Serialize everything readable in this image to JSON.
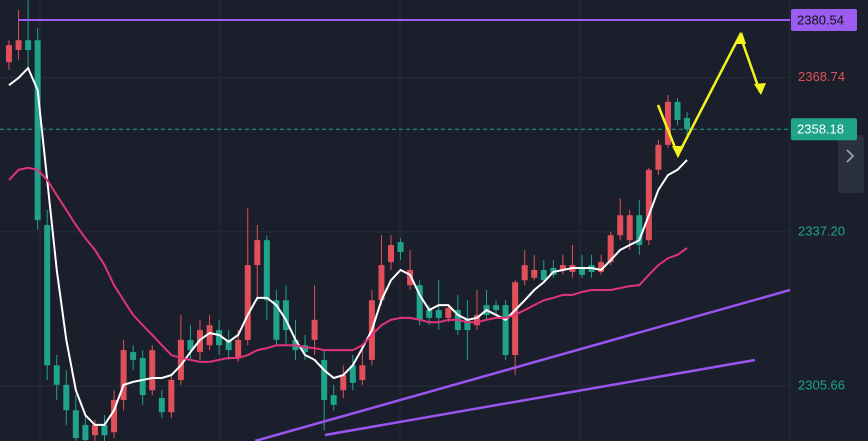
{
  "chart_data": {
    "type": "candlestick",
    "up_color": "#e0505a",
    "down_color": "#1fa38a",
    "ylim": [
      2294.41,
      2384.63
    ],
    "yticks": [
      2368.74,
      {
        "value": 2337.2,
        "label": "2337.20"
      },
      2305.66
    ],
    "ytick_colors": [
      "#e0505a",
      "#1fa38a",
      "#1fa38a"
    ],
    "grid": true,
    "open": [
      2371.9,
      2374.4,
      2376.4,
      2376.4,
      2338.6,
      2309.9,
      2305.9,
      2300.7,
      2297.7,
      2295.6,
      2297.7,
      2296.2,
      2302.8,
      2312.6,
      2311.4,
      2304.8,
      2303.2,
      2300.3,
      2306.9,
      2315.1,
      2312.6,
      2314.0,
      2317.1,
      2315.1,
      2311.4,
      2315.1,
      2330.4,
      2335.5,
      2323.2,
      2323.2,
      2315.1,
      2314.0,
      2315.1,
      2311.0,
      2303.8,
      2304.8,
      2309.9,
      2306.9,
      2311.0,
      2323.2,
      2331.0,
      2335.1,
      2326.3,
      2326.3,
      2321.2,
      2321.2,
      2319.6,
      2321.2,
      2319.2,
      2318.1,
      2322.2,
      2322.2,
      2322.2,
      2312.0,
      2327.3,
      2327.8,
      2329.4,
      2329.8,
      2329.4,
      2329.0,
      2329.8,
      2330.4,
      2329.0,
      2331.0,
      2336.5,
      2335.5,
      2340.6,
      2335.5,
      2349.9,
      2355.0,
      2363.8,
      2360.5
    ],
    "high": [
      2376.4,
      2382.6,
      2384.6,
      2378.9,
      2341.7,
      2312.0,
      2308.9,
      2303.8,
      2299.7,
      2298.7,
      2299.7,
      2304.8,
      2315.1,
      2314.0,
      2313.0,
      2314.0,
      2304.8,
      2307.9,
      2320.2,
      2318.1,
      2319.2,
      2320.2,
      2319.2,
      2317.1,
      2317.1,
      2342.0,
      2338.6,
      2336.5,
      2325.3,
      2326.3,
      2319.2,
      2316.1,
      2326.3,
      2313.0,
      2305.9,
      2309.9,
      2312.0,
      2313.0,
      2325.3,
      2336.5,
      2336.5,
      2335.9,
      2333.5,
      2327.3,
      2322.2,
      2327.3,
      2322.2,
      2324.3,
      2323.2,
      2325.3,
      2325.3,
      2323.2,
      2323.2,
      2327.3,
      2333.5,
      2332.5,
      2331.4,
      2331.4,
      2332.5,
      2334.5,
      2332.5,
      2332.5,
      2332.5,
      2337.2,
      2344.1,
      2341.7,
      2343.7,
      2350.3,
      2356.0,
      2365.2,
      2364.6,
      2361.7
    ],
    "low": [
      2370.3,
      2372.4,
      2370.3,
      2337.6,
      2306.9,
      2302.8,
      2297.7,
      2294.4,
      2294.4,
      2294.4,
      2294.4,
      2295.0,
      2300.7,
      2308.9,
      2301.8,
      2303.8,
      2299.1,
      2299.1,
      2305.9,
      2311.0,
      2311.0,
      2313.0,
      2312.0,
      2311.0,
      2310.6,
      2314.0,
      2323.2,
      2319.2,
      2314.0,
      2314.0,
      2311.0,
      2311.0,
      2312.0,
      2296.6,
      2300.7,
      2303.2,
      2304.8,
      2305.9,
      2309.9,
      2322.2,
      2329.4,
      2331.4,
      2325.3,
      2318.1,
      2318.1,
      2317.1,
      2318.7,
      2316.1,
      2311.0,
      2317.1,
      2319.2,
      2320.2,
      2311.0,
      2307.9,
      2326.3,
      2327.3,
      2326.9,
      2327.8,
      2328.4,
      2327.8,
      2327.8,
      2327.8,
      2328.4,
      2330.4,
      2335.5,
      2333.5,
      2332.5,
      2334.5,
      2348.8,
      2354.4,
      2359.0,
      2357.0
    ],
    "close": [
      2375.4,
      2376.4,
      2374.4,
      2339.6,
      2309.9,
      2305.9,
      2300.7,
      2295.0,
      2294.6,
      2297.7,
      2295.6,
      2302.8,
      2313.0,
      2311.0,
      2303.8,
      2313.0,
      2300.3,
      2306.9,
      2315.1,
      2313.0,
      2317.1,
      2318.1,
      2314.0,
      2313.0,
      2315.1,
      2330.4,
      2335.5,
      2323.2,
      2315.1,
      2317.1,
      2313.0,
      2312.6,
      2319.2,
      2302.8,
      2301.8,
      2307.9,
      2306.3,
      2309.9,
      2323.2,
      2330.4,
      2334.5,
      2333.1,
      2329.4,
      2319.2,
      2319.6,
      2319.6,
      2321.6,
      2317.1,
      2317.1,
      2320.2,
      2320.2,
      2321.2,
      2312.0,
      2326.9,
      2330.4,
      2329.4,
      2327.3,
      2328.4,
      2330.4,
      2330.4,
      2328.4,
      2329.0,
      2331.0,
      2336.5,
      2340.6,
      2340.6,
      2334.5,
      2349.9,
      2355.0,
      2363.8,
      2360.1,
      2358.18
    ],
    "overlays": [
      {
        "color": "#ffffff",
        "values": [
          2367.2,
          2368.7,
          2370.7,
          2366.2,
          2347.8,
          2329.4,
          2315.1,
          2304.8,
          2299.7,
          2297.7,
          2297.7,
          2300.7,
          2305.9,
          2306.5,
          2306.9,
          2307.3,
          2307.3,
          2307.9,
          2309.9,
          2312.6,
          2315.1,
          2316.5,
          2316.1,
          2314.7,
          2316.1,
          2320.2,
          2323.7,
          2323.7,
          2322.2,
          2319.2,
          2315.1,
          2312.0,
          2311.0,
          2308.9,
          2307.3,
          2307.9,
          2309.9,
          2313.4,
          2317.1,
          2323.2,
          2327.3,
          2329.4,
          2328.4,
          2324.3,
          2321.2,
          2322.2,
          2322.2,
          2320.2,
          2319.2,
          2319.6,
          2321.2,
          2320.2,
          2319.2,
          2321.2,
          2323.2,
          2325.3,
          2326.9,
          2329.0,
          2329.4,
          2329.8,
          2329.8,
          2329.8,
          2329.4,
          2331.4,
          2333.5,
          2334.5,
          2335.5,
          2340.6,
          2345.8,
          2348.8,
          2349.9,
          2351.9
        ]
      },
      {
        "color": "#e0347a",
        "values": [
          2347.8,
          2349.9,
          2350.3,
          2349.9,
          2347.8,
          2344.7,
          2341.7,
          2338.6,
          2335.9,
          2333.5,
          2330.4,
          2326.3,
          2323.2,
          2320.2,
          2318.1,
          2316.1,
          2314.0,
          2312.0,
          2311.4,
          2311.0,
          2310.6,
          2310.6,
          2311.0,
          2311.4,
          2311.4,
          2312.0,
          2313.0,
          2313.4,
          2314.0,
          2314.0,
          2314.0,
          2313.6,
          2313.4,
          2313.0,
          2313.0,
          2313.0,
          2313.0,
          2314.0,
          2316.1,
          2318.1,
          2319.2,
          2319.6,
          2319.6,
          2319.2,
          2318.7,
          2318.7,
          2319.2,
          2319.2,
          2318.7,
          2318.7,
          2319.2,
          2319.6,
          2319.6,
          2320.2,
          2321.2,
          2322.2,
          2323.2,
          2323.7,
          2324.3,
          2324.3,
          2324.9,
          2325.3,
          2325.3,
          2325.3,
          2325.7,
          2326.1,
          2326.3,
          2328.4,
          2330.4,
          2331.8,
          2332.5,
          2333.9
        ]
      }
    ],
    "price_lines": [
      {
        "value": 2380.54,
        "color": "#9c5cf0",
        "style": "solid"
      },
      {
        "value": 2358.18,
        "color": "#1fa38a",
        "style": "dashed"
      }
    ]
  }
}
